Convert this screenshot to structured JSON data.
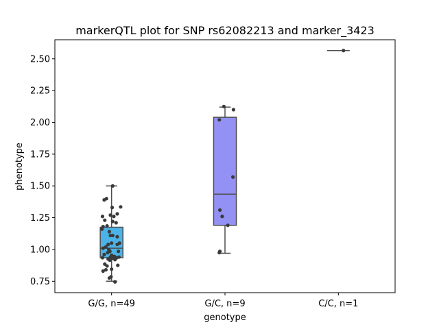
{
  "chart_data": {
    "type": "box",
    "title": "markerQTL plot for SNP rs62082213 and marker_3423",
    "xlabel": "genotype",
    "ylabel": "phenotype",
    "ylim": [
      0.66,
      2.65
    ],
    "yticks": [
      "0.75",
      "1.00",
      "1.25",
      "1.50",
      "1.75",
      "2.00",
      "2.25",
      "2.50"
    ],
    "grid": false,
    "categories": [
      "G/G, n=49",
      "G/C, n=9",
      "C/C, n=1"
    ],
    "box_colors": [
      "#4bb3e8",
      "#9391f4",
      "#f2a0c0"
    ],
    "edge_color": "#4d4d4d",
    "point_color": "#3a3a3a",
    "boxes": [
      {
        "whisker_low": 0.75,
        "q1": 0.935,
        "median": 1.01,
        "q3": 1.175,
        "whisker_high": 1.5
      },
      {
        "whisker_low": 0.97,
        "q1": 1.19,
        "median": 1.435,
        "q3": 2.04,
        "whisker_high": 2.12
      },
      {
        "whisker_low": 2.565,
        "q1": 2.565,
        "median": 2.565,
        "q3": 2.565,
        "whisker_high": 2.565
      }
    ],
    "points": [
      [
        {
          "j": 0.02,
          "y": 1.5
        },
        {
          "j": -0.13,
          "y": 1.39
        },
        {
          "j": -0.09,
          "y": 1.4
        },
        {
          "j": 0.01,
          "y": 1.33
        },
        {
          "j": 0.16,
          "y": 1.335
        },
        {
          "j": -0.16,
          "y": 1.26
        },
        {
          "j": -0.02,
          "y": 1.27
        },
        {
          "j": 0.04,
          "y": 1.26
        },
        {
          "j": 0.1,
          "y": 1.28
        },
        {
          "j": -0.12,
          "y": 1.23
        },
        {
          "j": 0.02,
          "y": 1.22
        },
        {
          "j": -0.15,
          "y": 1.18
        },
        {
          "j": -0.08,
          "y": 1.185
        },
        {
          "j": -0.17,
          "y": 1.16
        },
        {
          "j": -0.04,
          "y": 1.14
        },
        {
          "j": -0.02,
          "y": 1.11
        },
        {
          "j": 0.02,
          "y": 1.11
        },
        {
          "j": 0.1,
          "y": 1.1
        },
        {
          "j": 0.14,
          "y": 1.05
        },
        {
          "j": -0.06,
          "y": 1.04
        },
        {
          "j": 0.0,
          "y": 1.05
        },
        {
          "j": 0.1,
          "y": 1.04
        },
        {
          "j": -0.1,
          "y": 1.02
        },
        {
          "j": -0.15,
          "y": 1.01
        },
        {
          "j": -0.05,
          "y": 1.0
        },
        {
          "j": -0.03,
          "y": 0.985
        },
        {
          "j": -0.07,
          "y": 0.975
        },
        {
          "j": 0.12,
          "y": 0.985
        },
        {
          "j": -0.13,
          "y": 0.96
        },
        {
          "j": 0.0,
          "y": 0.955
        },
        {
          "j": -0.02,
          "y": 0.94
        },
        {
          "j": 0.05,
          "y": 0.945
        },
        {
          "j": -0.16,
          "y": 0.935
        },
        {
          "j": 0.13,
          "y": 0.94
        },
        {
          "j": -0.06,
          "y": 0.925
        },
        {
          "j": -0.03,
          "y": 0.915
        },
        {
          "j": 0.02,
          "y": 0.93
        },
        {
          "j": 0.06,
          "y": 0.92
        },
        {
          "j": 0.09,
          "y": 0.935
        },
        {
          "j": -0.12,
          "y": 0.885
        },
        {
          "j": 0.11,
          "y": 0.875
        },
        {
          "j": -0.15,
          "y": 0.83
        },
        {
          "j": -0.1,
          "y": 0.84
        },
        {
          "j": 0.0,
          "y": 0.845
        },
        {
          "j": -0.04,
          "y": 0.775
        },
        {
          "j": -0.01,
          "y": 0.785
        },
        {
          "j": 0.06,
          "y": 0.745
        },
        {
          "j": -0.08,
          "y": 0.87
        },
        {
          "j": 0.08,
          "y": 1.21
        }
      ],
      [
        {
          "j": -0.02,
          "y": 2.125
        },
        {
          "j": 0.15,
          "y": 2.1
        },
        {
          "j": -0.1,
          "y": 2.02
        },
        {
          "j": 0.14,
          "y": 1.57
        },
        {
          "j": -0.09,
          "y": 1.31
        },
        {
          "j": -0.05,
          "y": 1.26
        },
        {
          "j": -0.09,
          "y": 0.985
        },
        {
          "j": -0.1,
          "y": 0.975
        },
        {
          "j": 0.05,
          "y": 1.19
        }
      ],
      [
        {
          "j": 0.09,
          "y": 2.565
        }
      ]
    ]
  }
}
